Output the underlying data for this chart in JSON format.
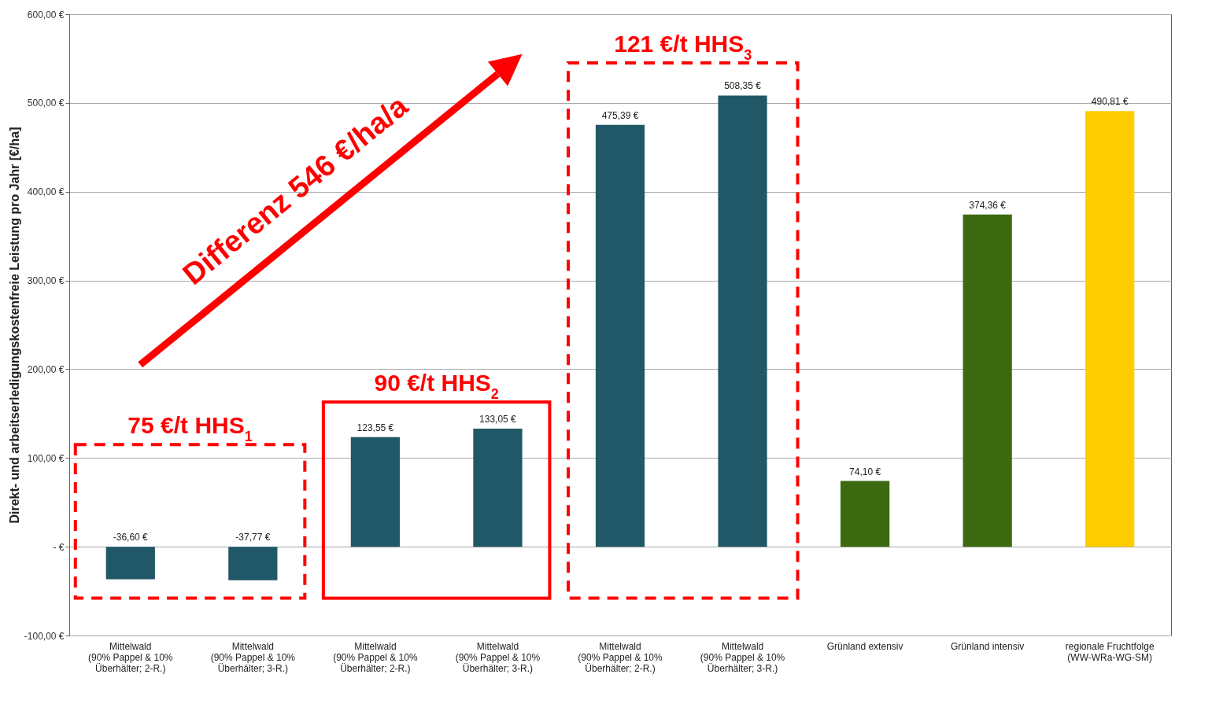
{
  "chart_data": {
    "type": "bar",
    "ylabel": "Direkt- und arbeitserledigungskostenfreie Leistung pro Jahr [€/ha]",
    "categories": [
      "Mittelwald (90% Pappel & 10% Überhälter; 2-R.)",
      "Mittelwald (90% Pappel & 10% Überhälter; 3-R.)",
      "Mittelwald (90% Pappel & 10% Überhälter; 2-R.)",
      "Mittelwald (90% Pappel & 10% Überhälter; 3-R.)",
      "Mittelwald (90% Pappel & 10% Überhälter; 2-R.)",
      "Mittelwald (90% Pappel & 10% Überhälter; 3-R.)",
      "Grünland extensiv",
      "Grünland intensiv",
      "regionale Fruchtfolge (WW-WRa-WG-SM)"
    ],
    "values": [
      -36.6,
      -37.77,
      123.55,
      133.05,
      475.39,
      508.35,
      74.1,
      374.36,
      490.81
    ],
    "value_labels": [
      "-36,60 €",
      "-37,77 €",
      "123,55 €",
      "133,05 €",
      "475,39 €",
      "508,35 €",
      "74,10 €",
      "374,36 €",
      "490,81 €"
    ],
    "colors": [
      "#215868",
      "#215868",
      "#215868",
      "#215868",
      "#215868",
      "#215868",
      "#3b6a10",
      "#3b6a10",
      "#ffcc00"
    ],
    "ylim": [
      -100,
      600
    ],
    "yticks": [
      {
        "value": -100,
        "label": "-100,00 €"
      },
      {
        "value": 0,
        "label": "- €"
      },
      {
        "value": 100,
        "label": "100,00 €"
      },
      {
        "value": 200,
        "label": "200,00 €"
      },
      {
        "value": 300,
        "label": "300,00 €"
      },
      {
        "value": 400,
        "label": "400,00 €"
      },
      {
        "value": 500,
        "label": "500,00 €"
      },
      {
        "value": 600,
        "label": "600,00 €"
      }
    ],
    "grid": "y",
    "annotations": [
      "Differenz 546 €/ha/a",
      "75 €/t HHS$_{1}$",
      "90 €/t HHS$_{2}$",
      "121 €/t HHS$_{3}$"
    ]
  }
}
